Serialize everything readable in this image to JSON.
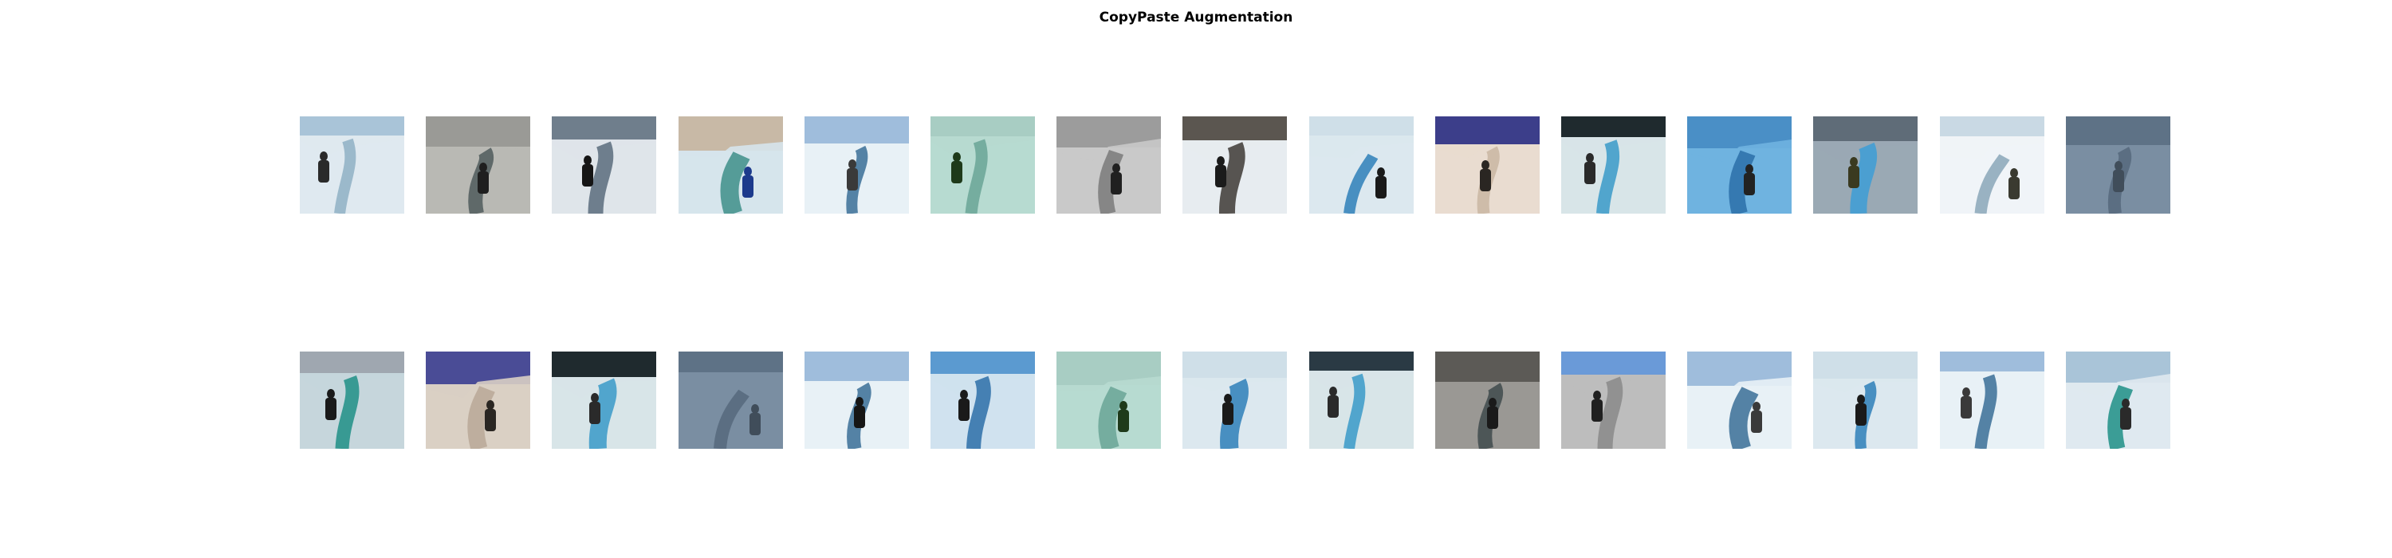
{
  "figure": {
    "title": "CopyPaste Augmentation"
  },
  "rows": [
    {
      "tiles": [
        {
          "scene": "ice-cave-person-standing",
          "sky": "#a9c4d8",
          "ice": "#dfe9ef",
          "accent": "#8fb0c4",
          "figure": "#2a2a2a",
          "grayscale": false
        },
        {
          "scene": "crevasse-climbers-gray",
          "sky": "#9a9a96",
          "ice": "#b9b9b4",
          "accent": "#4f5a5c",
          "figure": "#1f1f1f",
          "grayscale": false
        },
        {
          "scene": "snowfield-hikers",
          "sky": "#6f7e8c",
          "ice": "#dfe4ea",
          "accent": "#5a6c7d",
          "figure": "#151515",
          "grayscale": false
        },
        {
          "scene": "ice-wall-person-blue-jacket",
          "sky": "#c8b9a6",
          "ice": "#d6e4ec",
          "accent": "#3e8f8a",
          "figure": "#1c3a8c",
          "grayscale": false
        },
        {
          "scene": "glacier-crevasse-landscape",
          "sky": "#9fbddc",
          "ice": "#e8f1f6",
          "accent": "#3a6f96",
          "figure": "#3a3a3a",
          "grayscale": false
        },
        {
          "scene": "green-ice-corridor",
          "sky": "#a8cdc3",
          "ice": "#b7dad0",
          "accent": "#6aa597",
          "figure": "#1e3a1a",
          "grayscale": false
        },
        {
          "scene": "grayscale-slope-climber",
          "sky": "#9c9c9c",
          "ice": "#c9c9c9",
          "accent": "#7a7a7a",
          "figure": "#202020",
          "grayscale": true
        },
        {
          "scene": "dark-cave-group",
          "sky": "#5b5650",
          "ice": "#e7ecef",
          "accent": "#3d3935",
          "figure": "#1b1b1b",
          "grayscale": false
        },
        {
          "scene": "blue-crevasse-group",
          "sky": "#cfdfe8",
          "ice": "#dbe8ee",
          "accent": "#2e7fb8",
          "figure": "#1a1a1a",
          "grayscale": false
        },
        {
          "scene": "purple-sky-person",
          "sky": "#3c3e8a",
          "ice": "#e9dccf",
          "accent": "#c9b6a2",
          "figure": "#2a2622",
          "grayscale": false
        },
        {
          "scene": "ice-cave-blue-glow",
          "sky": "#1f2a2e",
          "ice": "#d8e4e8",
          "accent": "#3a9ac8",
          "figure": "#2a2a2a",
          "grayscale": false
        },
        {
          "scene": "blue-ice-tunnel",
          "sky": "#4a8fc6",
          "ice": "#6fb3e0",
          "accent": "#2c6ea8",
          "figure": "#222222",
          "grayscale": false
        },
        {
          "scene": "climber-over-blue-pool",
          "sky": "#5f6c78",
          "ice": "#9aa8b4",
          "accent": "#3d9ed6",
          "figure": "#3a3a20",
          "grayscale": false
        },
        {
          "scene": "snow-arch-selfie",
          "sky": "#c9d9e4",
          "ice": "#f0f4f7",
          "accent": "#8aa6b8",
          "figure": "#3a3a30",
          "grayscale": false
        },
        {
          "scene": "blue-gray-ice-face",
          "sky": "#5e7286",
          "ice": "#7a8ea2",
          "accent": "#56697c",
          "figure": "#404d5a",
          "grayscale": false
        }
      ]
    },
    {
      "tiles": [
        {
          "scene": "teal-crevasse-climbers",
          "sky": "#9fa7b0",
          "ice": "#c5d6dc",
          "accent": "#1f8f86",
          "figure": "#1a1a1a",
          "grayscale": false
        },
        {
          "scene": "purple-sky-pair",
          "sky": "#4a4c96",
          "ice": "#d9cfc4",
          "accent": "#b9a898",
          "figure": "#2a2622",
          "grayscale": false
        },
        {
          "scene": "ice-cave-blue-glow-2",
          "sky": "#1f2a2e",
          "ice": "#d8e4e8",
          "accent": "#3a9ac8",
          "figure": "#2a2a2a",
          "grayscale": false
        },
        {
          "scene": "blue-gray-ice-face-2",
          "sky": "#5e7286",
          "ice": "#7a8ea2",
          "accent": "#56697c",
          "figure": "#404d5a",
          "grayscale": false
        },
        {
          "scene": "glacier-crevasse-person",
          "sky": "#9fbddc",
          "ice": "#e8f1f6",
          "accent": "#3a6f96",
          "figure": "#161616",
          "grayscale": false
        },
        {
          "scene": "blue-ice-walls-climber",
          "sky": "#5b9ad0",
          "ice": "#cfe2ee",
          "accent": "#2d6fa8",
          "figure": "#1a1a1a",
          "grayscale": false
        },
        {
          "scene": "green-ice-corridor-2",
          "sky": "#a8cdc3",
          "ice": "#b7dad0",
          "accent": "#6aa597",
          "figure": "#1e3a1a",
          "grayscale": false
        },
        {
          "scene": "blue-crevasse-hikers",
          "sky": "#cfdfe8",
          "ice": "#dbe8ee",
          "accent": "#2e7fb8",
          "figure": "#1a1a1a",
          "grayscale": false
        },
        {
          "scene": "ice-cave-blue-glow-3",
          "sky": "#2a3a44",
          "ice": "#d8e4e8",
          "accent": "#3a9ac8",
          "figure": "#2a2a2a",
          "grayscale": false
        },
        {
          "scene": "dark-crevasse-climbers",
          "sky": "#5c5a56",
          "ice": "#9a9894",
          "accent": "#3f4a4c",
          "figure": "#1a1a1a",
          "grayscale": false
        },
        {
          "scene": "gray-ice-funnel",
          "sky": "#6a9ad8",
          "ice": "#bdbdbd",
          "accent": "#8a8a8a",
          "figure": "#202020",
          "grayscale": false
        },
        {
          "scene": "glacier-crevasse-landscape-2",
          "sky": "#9fbddc",
          "ice": "#e8f1f6",
          "accent": "#3a6f96",
          "figure": "#3a3a3a",
          "grayscale": false
        },
        {
          "scene": "blue-crevasse-group-2",
          "sky": "#cfdfe8",
          "ice": "#dbe8ee",
          "accent": "#2e7fb8",
          "figure": "#1a1a1a",
          "grayscale": false
        },
        {
          "scene": "glacier-crevasse-landscape-3",
          "sky": "#9fbddc",
          "ice": "#e8f1f6",
          "accent": "#3a6f96",
          "figure": "#3a3a3a",
          "grayscale": false
        },
        {
          "scene": "teal-ice-rope",
          "sky": "#a9c4d8",
          "ice": "#dfe9ef",
          "accent": "#1f8f86",
          "figure": "#2a2a2a",
          "grayscale": false
        }
      ]
    }
  ]
}
